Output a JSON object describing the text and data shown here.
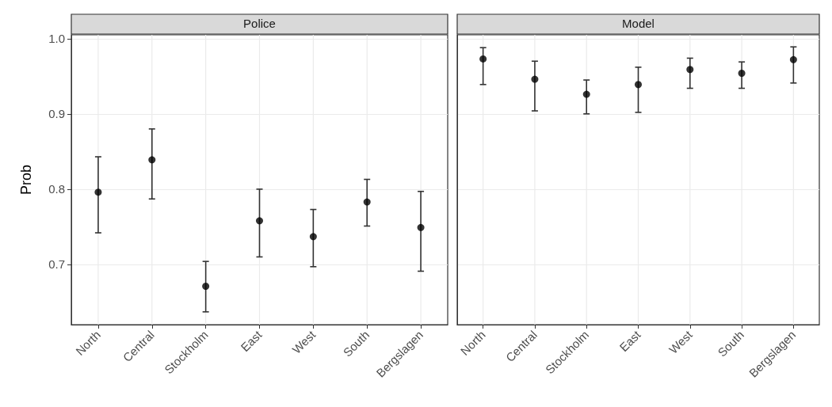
{
  "chart_data": [
    {
      "type": "scatter",
      "title": "Police",
      "ylabel": "Prob",
      "categories": [
        "North",
        "Central",
        "Stockholm",
        "East",
        "West",
        "South",
        "Bergslagen"
      ],
      "ylim": [
        0.62,
        1.005
      ],
      "yticks": [
        0.7,
        0.8,
        0.9,
        {
          "value": 1.0,
          "label": "1.0"
        }
      ],
      "grid": true,
      "marker": "circle",
      "series": [
        {
          "color": "#000000",
          "values": [
            0.796,
            0.839,
            0.671,
            0.758,
            0.737,
            0.783,
            0.749
          ],
          "errors": [
            [
              0.742,
              0.843
            ],
            [
              0.787,
              0.88
            ],
            [
              0.637,
              0.704
            ],
            [
              0.71,
              0.8
            ],
            [
              0.697,
              0.773
            ],
            [
              0.751,
              0.813
            ],
            [
              0.691,
              0.797
            ]
          ]
        }
      ]
    },
    {
      "type": "scatter",
      "title": "Model",
      "categories": [
        "North",
        "Central",
        "Stockholm",
        "East",
        "West",
        "South",
        "Bergslagen"
      ],
      "ylim": [
        0.62,
        1.005
      ],
      "yticks": [
        0.7,
        0.8,
        0.9,
        1
      ],
      "grid": true,
      "marker": "circle",
      "tick_labels": "x",
      "series": [
        {
          "color": "#000000",
          "values": [
            0.973,
            0.946,
            0.926,
            0.939,
            0.959,
            0.954,
            0.972
          ],
          "errors": [
            [
              0.939,
              0.988
            ],
            [
              0.904,
              0.97
            ],
            [
              0.9,
              0.945
            ],
            [
              0.902,
              0.962
            ],
            [
              0.934,
              0.974
            ],
            [
              0.934,
              0.969
            ],
            [
              0.941,
              0.989
            ]
          ]
        }
      ]
    }
  ]
}
